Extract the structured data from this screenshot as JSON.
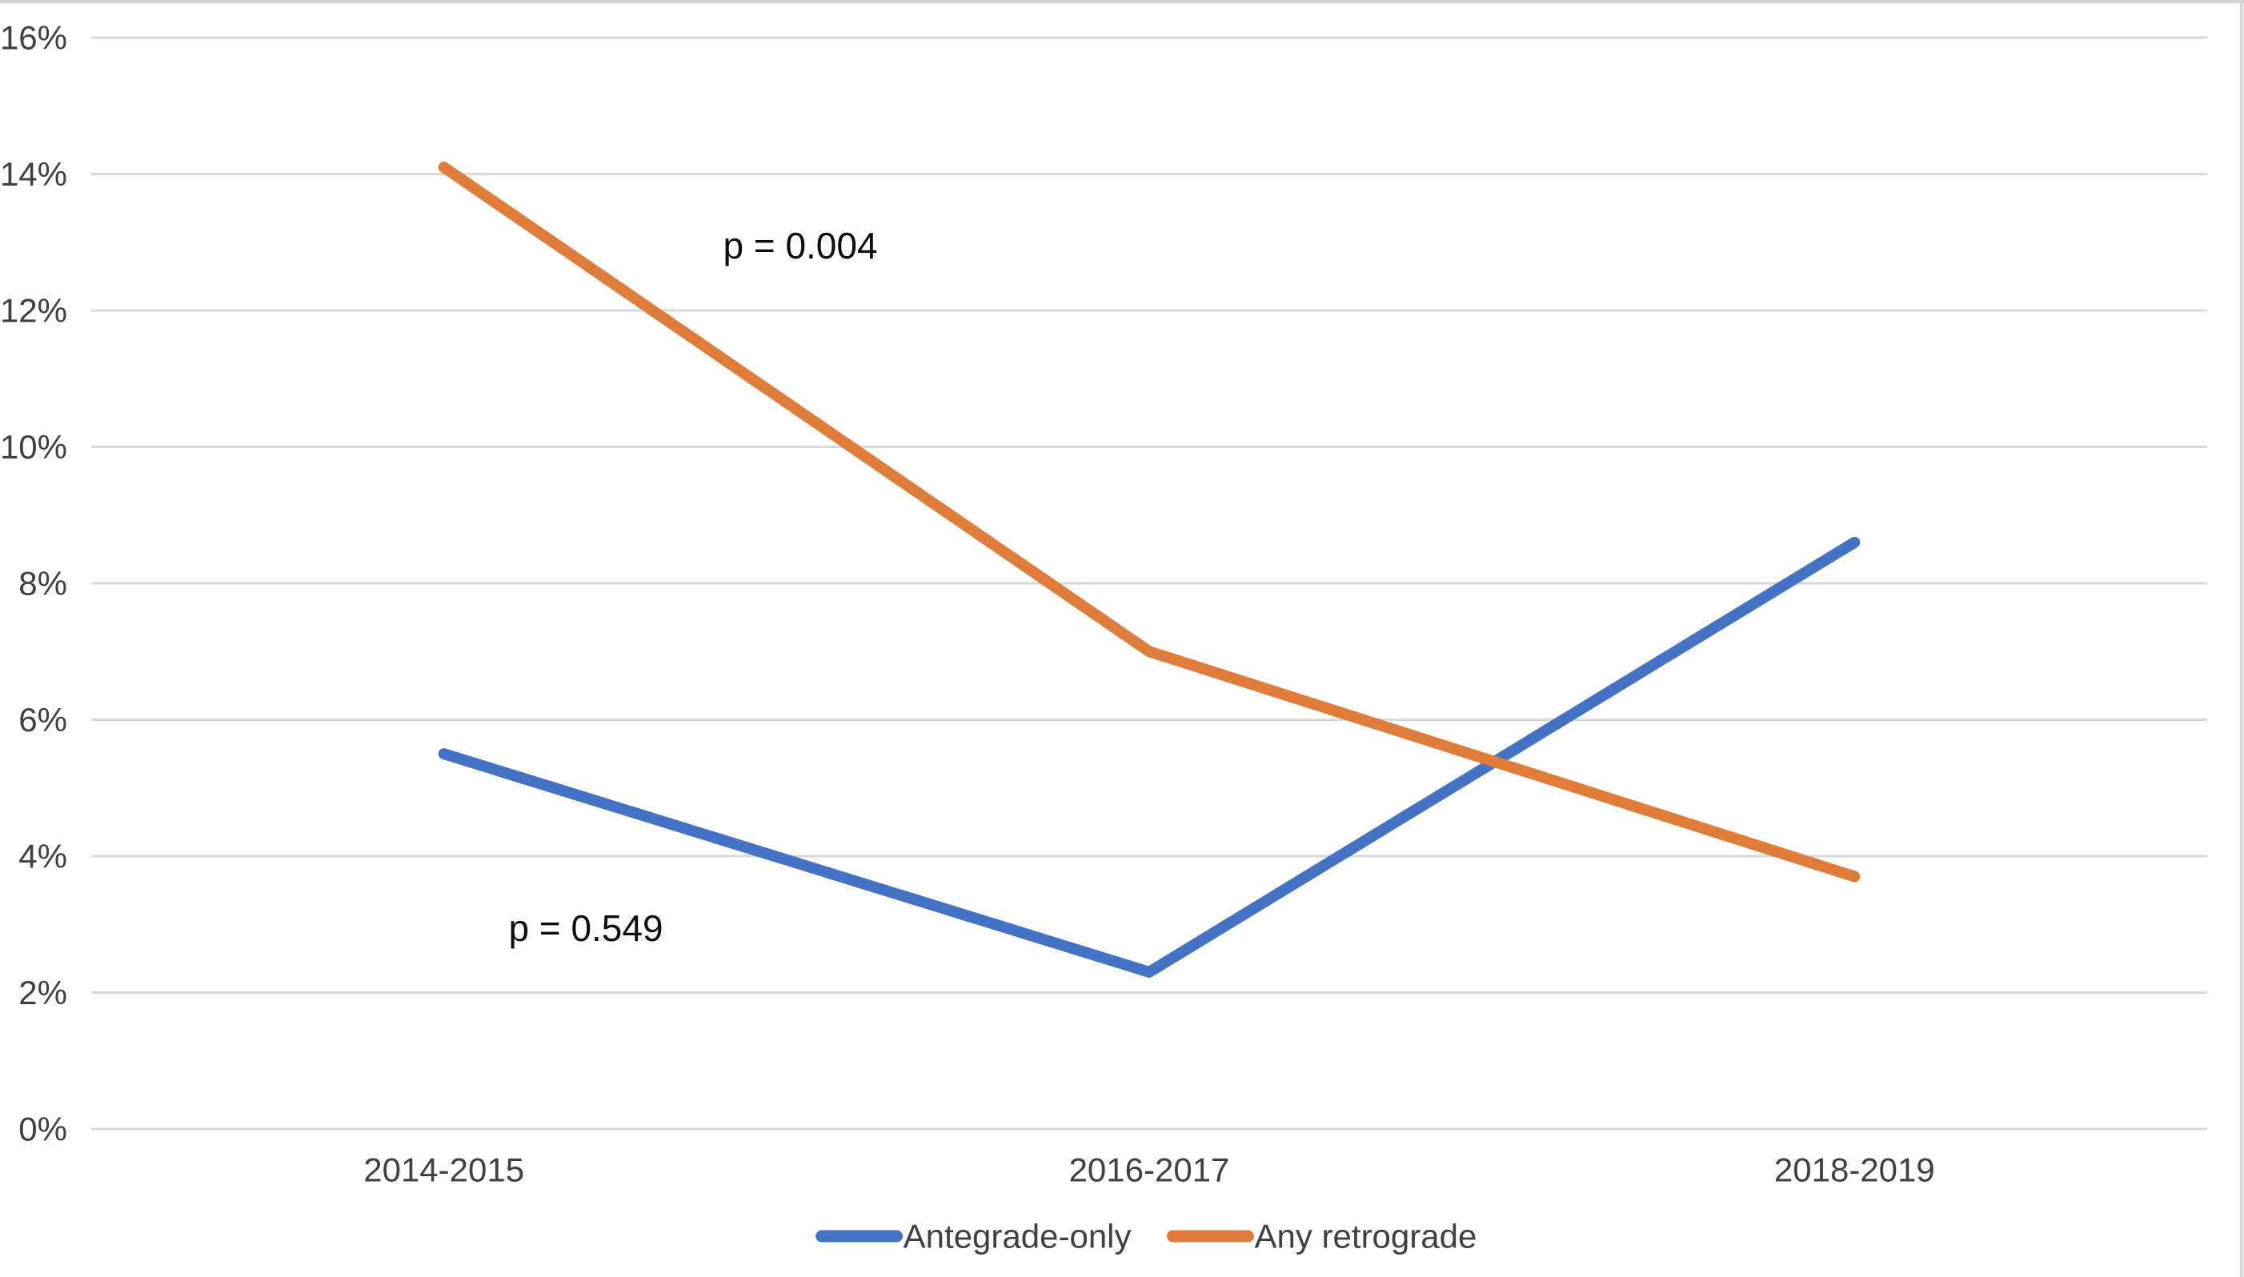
{
  "chart_data": {
    "type": "line",
    "title": "",
    "xlabel": "",
    "ylabel": "",
    "categories": [
      "2014-2015",
      "2016-2017",
      "2018-2019"
    ],
    "series": [
      {
        "name": "Antegrade-only",
        "color": "#4472C4",
        "values": [
          5.5,
          2.3,
          8.6
        ]
      },
      {
        "name": "Any retrograde",
        "color": "#E07C39",
        "values": [
          14.1,
          7.0,
          3.7
        ]
      }
    ],
    "ylim": [
      0,
      16
    ],
    "y_tick_step": 2,
    "y_tick_labels": [
      "0%",
      "2%",
      "4%",
      "6%",
      "8%",
      "10%",
      "12%",
      "14%",
      "16%"
    ],
    "grid": "horizontal-only",
    "legend_position": "bottom-center",
    "annotations": [
      {
        "text": "p = 0.004",
        "series": "Any retrograde",
        "x": 1000,
        "y": 307
      },
      {
        "text": "p = 0.549",
        "series": "Antegrade-only",
        "x": 732,
        "y": 1160
      }
    ]
  },
  "colors": {
    "gridline": "#D9D9D9",
    "chart_border": "#D6D6D6",
    "tick_label": "#404040",
    "axis_label": "#404040",
    "legend_text": "#404040",
    "annotation_text": "#0D0D0D",
    "background": "#FFFFFF"
  }
}
